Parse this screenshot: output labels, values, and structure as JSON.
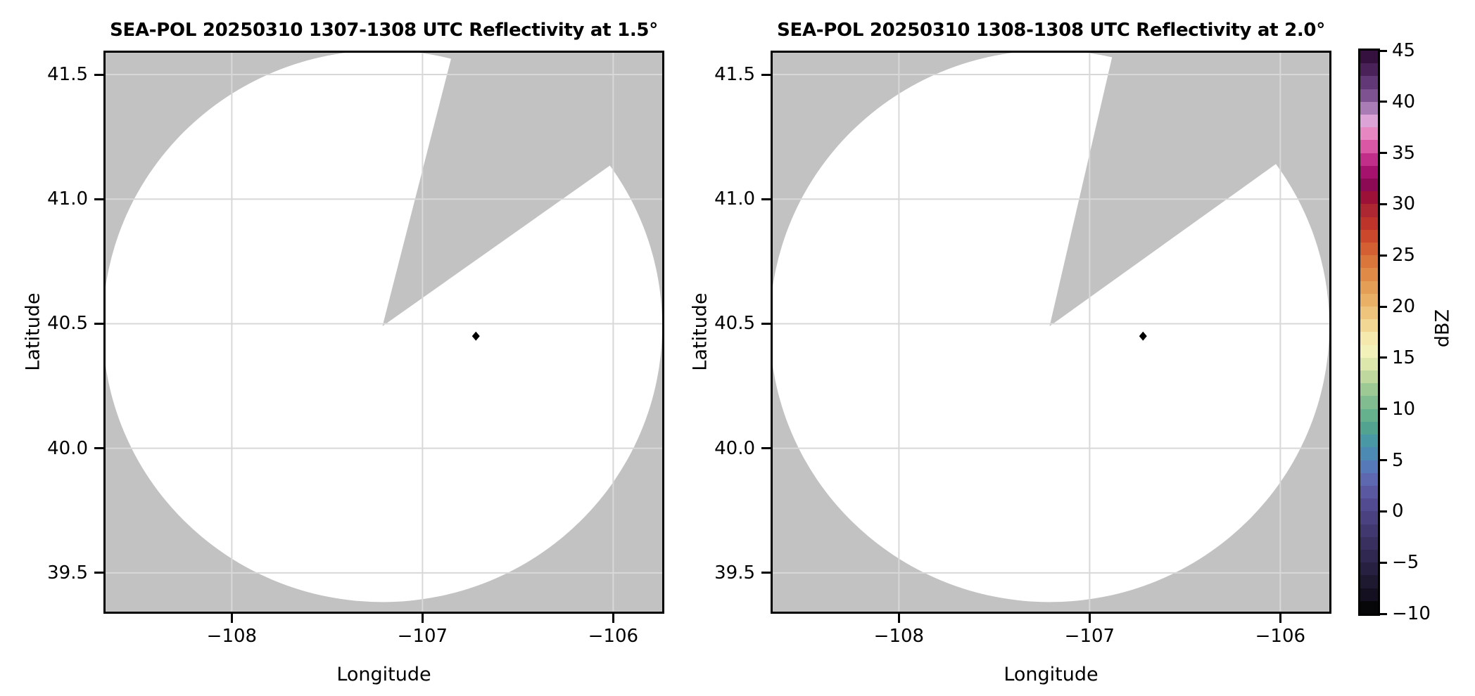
{
  "chart_data": {
    "type": "heatmap",
    "figure_kind": "radar-ppi-reflectivity",
    "panels": [
      {
        "title": "SEA-POL 20250310 1307-1308 UTC Reflectivity at 1.5°",
        "xlabel": "Longitude",
        "ylabel": "Latitude",
        "xlim": [
          -108.673,
          -105.732
        ],
        "ylim": [
          39.336,
          41.596
        ],
        "xticks": [
          {
            "value": -108,
            "label": "−108"
          },
          {
            "value": -107,
            "label": "−107"
          },
          {
            "value": -106,
            "label": "−106"
          }
        ],
        "yticks": [
          {
            "value": 41.5,
            "label": "41.5"
          },
          {
            "value": 41.0,
            "label": "41.0"
          },
          {
            "value": 40.5,
            "label": "40.5"
          },
          {
            "value": 40.0,
            "label": "40.0"
          },
          {
            "value": 39.5,
            "label": "39.5"
          }
        ],
        "radar_center": {
          "lon": -107.21,
          "lat": 40.49
        },
        "coverage_radius_deg_lon": 1.467,
        "coverage_radius_deg_lat": 1.107,
        "missing_sector_azimuth_deg": {
          "start": 14.3,
          "end": 54.6
        },
        "marker": {
          "lon": -106.72,
          "lat": 40.45,
          "value_dbz": null
        }
      },
      {
        "title": "SEA-POL 20250310 1308-1308 UTC Reflectivity at 2.0°",
        "xlabel": "Longitude",
        "ylabel": "Latitude",
        "xlim": [
          -108.673,
          -105.732
        ],
        "ylim": [
          39.336,
          41.596
        ],
        "xticks": [
          {
            "value": -108,
            "label": "−108"
          },
          {
            "value": -107,
            "label": "−107"
          },
          {
            "value": -106,
            "label": "−106"
          }
        ],
        "yticks": [
          {
            "value": 41.5,
            "label": "41.5"
          },
          {
            "value": 41.0,
            "label": "41.0"
          },
          {
            "value": 40.5,
            "label": "40.5"
          },
          {
            "value": 40.0,
            "label": "40.0"
          },
          {
            "value": 39.5,
            "label": "39.5"
          }
        ],
        "radar_center": {
          "lon": -107.21,
          "lat": 40.49
        },
        "coverage_radius_deg_lon": 1.467,
        "coverage_radius_deg_lat": 1.107,
        "missing_sector_azimuth_deg": {
          "start": 13.0,
          "end": 54.2
        },
        "marker": {
          "lon": -106.72,
          "lat": 40.45,
          "value_dbz": null
        }
      }
    ],
    "colorbar": {
      "label": "dBZ",
      "vmin": -10,
      "vmax": 45,
      "block_step_dbz": 1.25,
      "ticks": [
        {
          "value": 45,
          "label": "45"
        },
        {
          "value": 40,
          "label": "40"
        },
        {
          "value": 35,
          "label": "35"
        },
        {
          "value": 30,
          "label": "30"
        },
        {
          "value": 25,
          "label": "25"
        },
        {
          "value": 20,
          "label": "20"
        },
        {
          "value": 15,
          "label": "15"
        },
        {
          "value": 10,
          "label": "10"
        },
        {
          "value": 5,
          "label": "5"
        },
        {
          "value": 0,
          "label": "0"
        },
        {
          "value": -5,
          "label": "−5"
        },
        {
          "value": -10,
          "label": "−10"
        }
      ],
      "block_colors_low_to_high": [
        "#070609",
        "#151021",
        "#1f1831",
        "#282040",
        "#302850",
        "#393060",
        "#413870",
        "#4a4181",
        "#524b92",
        "#5958a1",
        "#5d68b0",
        "#5679b9",
        "#4d8ab3",
        "#4898a5",
        "#52a491",
        "#66b18d",
        "#80bc8f",
        "#9dc995",
        "#bed89d",
        "#dde7ab",
        "#f2f1ba",
        "#f5e9ae",
        "#f2d694",
        "#eec47c",
        "#eab166",
        "#e59e55",
        "#e08a48",
        "#da753c",
        "#d35f33",
        "#cb482c",
        "#bd342b",
        "#ad2732",
        "#9b1138",
        "#8b0a53",
        "#a4126e",
        "#c02e8a",
        "#d957a5",
        "#e687c2",
        "#dba3d6",
        "#a97cb5",
        "#7e5190",
        "#633877",
        "#4b215a",
        "#351140"
      ]
    },
    "style": {
      "no_data_gray": "#c2c2c2",
      "data_white": "#ffffff",
      "grid": "#d8d8d8",
      "frame": "#000000",
      "marker": "#000000",
      "text": "#000000"
    }
  }
}
